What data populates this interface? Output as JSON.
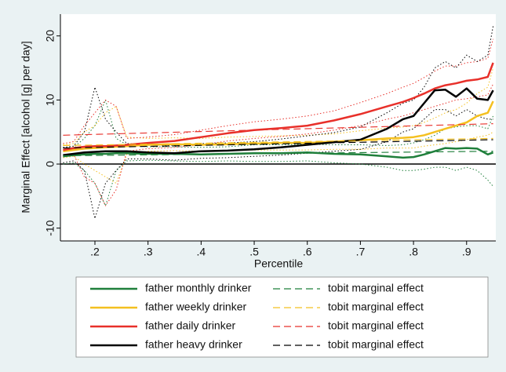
{
  "chart_data": {
    "type": "line",
    "x_label": "Percentile",
    "y_label": "Marginal Effect [alcohol [g] per day]",
    "x": [
      0.14,
      0.16,
      0.18,
      0.2,
      0.22,
      0.24,
      0.26,
      0.3,
      0.35,
      0.4,
      0.45,
      0.5,
      0.55,
      0.6,
      0.65,
      0.7,
      0.75,
      0.78,
      0.8,
      0.82,
      0.84,
      0.86,
      0.88,
      0.9,
      0.92,
      0.94,
      0.95
    ],
    "xlim": [
      0.135,
      0.955
    ],
    "ylim": [
      -12,
      23.4
    ],
    "xticks": [
      {
        "value": 0.2,
        "label": ".2"
      },
      {
        "value": 0.3,
        "label": ".3"
      },
      {
        "value": 0.4,
        "label": ".4"
      },
      {
        "value": 0.5,
        "label": ".5"
      },
      {
        "value": 0.6,
        "label": ".6"
      },
      {
        "value": 0.7,
        "label": ".7"
      },
      {
        "value": 0.8,
        "label": ".8"
      },
      {
        "value": 0.9,
        "label": ".9"
      }
    ],
    "yticks": [
      -10,
      0,
      10,
      20
    ],
    "zero_line": true,
    "series": [
      {
        "name": "father monthly drinker",
        "color": "#1f7f3b",
        "style": "solid",
        "values": [
          1.2,
          1.4,
          1.5,
          1.6,
          1.6,
          1.7,
          1.7,
          1.6,
          1.6,
          1.5,
          1.6,
          1.7,
          1.7,
          1.8,
          1.6,
          1.5,
          1.2,
          1.0,
          1.1,
          1.5,
          2.0,
          2.5,
          2.4,
          2.5,
          2.4,
          1.5,
          1.8
        ],
        "lower": [
          0.0,
          0.2,
          -1,
          -3,
          -6.5,
          -1,
          0.5,
          0.6,
          0.5,
          0.4,
          0.5,
          0.4,
          0.4,
          0.5,
          0.2,
          0,
          -0.5,
          -1,
          -1,
          -0.8,
          -0.5,
          -0.5,
          -1,
          -0.5,
          -1,
          -2.5,
          -3.5
        ],
        "upper": [
          2.5,
          2.6,
          4,
          6,
          10,
          4,
          3,
          2.7,
          2.7,
          2.6,
          2.7,
          3,
          3,
          3.1,
          3,
          3,
          2.9,
          3,
          3.3,
          3.8,
          4.5,
          5.5,
          5.8,
          6,
          6,
          5.5,
          7.5
        ]
      },
      {
        "name": "father weekly drinker",
        "color": "#f4c020",
        "style": "solid",
        "values": [
          2.0,
          2.2,
          2.4,
          2.5,
          2.6,
          2.7,
          2.8,
          3.0,
          3.1,
          3.0,
          3.1,
          3.2,
          3.3,
          3.3,
          3.5,
          3.7,
          4.0,
          4.1,
          4.2,
          4.5,
          5.0,
          5.5,
          6.0,
          6.5,
          7.5,
          8.0,
          9.8
        ],
        "lower": [
          1.0,
          1.2,
          0,
          -1,
          -2,
          -3,
          1.5,
          2,
          2.1,
          2,
          2.1,
          2.2,
          2.2,
          2.2,
          2.3,
          2.3,
          2.5,
          2.5,
          2.5,
          2.8,
          3,
          3.2,
          3.5,
          3.8,
          4.2,
          4.5,
          5
        ],
        "upper": [
          3,
          3.2,
          5,
          6,
          8,
          9,
          4.2,
          4,
          4.1,
          4,
          4.2,
          4.3,
          4.4,
          4.5,
          4.7,
          5.2,
          5.6,
          5.8,
          6,
          6.5,
          7.2,
          8,
          8.5,
          9.5,
          11,
          12,
          15
        ]
      },
      {
        "name": "father daily drinker",
        "color": "#e8302a",
        "style": "solid",
        "values": [
          2.2,
          2.5,
          2.7,
          2.8,
          2.8,
          2.9,
          3.0,
          3.3,
          3.6,
          4.2,
          4.8,
          5.3,
          5.6,
          6.0,
          6.8,
          7.8,
          9.0,
          9.7,
          10.3,
          11.0,
          11.8,
          12.3,
          12.6,
          13.0,
          13.2,
          13.6,
          15.8
        ],
        "lower": [
          1.2,
          1.5,
          -2,
          -3,
          -6.5,
          -4,
          2,
          2.4,
          2.6,
          3,
          3.6,
          4,
          4.3,
          4.7,
          5.3,
          6,
          7,
          7.5,
          8,
          8.5,
          9,
          9.5,
          10,
          10.2,
          10.5,
          10.8,
          12.5
        ],
        "upper": [
          3.2,
          3.5,
          6,
          8,
          10,
          9,
          4,
          4.2,
          4.6,
          5.3,
          6,
          6.6,
          7,
          7.5,
          8.3,
          9.6,
          11,
          12,
          12.6,
          13.5,
          14.5,
          15.3,
          15.3,
          15.8,
          16,
          16.5,
          19.5
        ]
      },
      {
        "name": "father heavy drinker",
        "color": "#000000",
        "style": "solid",
        "values": [
          1.4,
          1.6,
          1.8,
          1.9,
          2.0,
          2.0,
          2.0,
          1.8,
          1.7,
          2.0,
          2.1,
          2.3,
          2.6,
          3.0,
          3.4,
          3.8,
          5.5,
          7.0,
          7.5,
          9.5,
          11.5,
          11.6,
          10.5,
          11.8,
          10.2,
          10.0,
          11.5
        ],
        "lower": [
          0.2,
          0.5,
          -1,
          -8.5,
          -3,
          -1,
          0.8,
          0.8,
          0.6,
          0.9,
          1,
          1.2,
          1.4,
          1.7,
          2,
          2.3,
          3.5,
          5,
          5.5,
          7,
          8.5,
          8.5,
          7.5,
          8.5,
          7.5,
          7,
          7
        ],
        "upper": [
          2.6,
          2.8,
          5,
          12,
          7,
          5,
          3.2,
          3,
          2.9,
          3.2,
          3.3,
          3.5,
          3.9,
          4.4,
          4.9,
          5.8,
          8,
          9.5,
          10,
          12,
          15,
          16,
          15,
          17,
          16,
          17,
          21.5
        ]
      },
      {
        "name": "tobit marginal effect",
        "color": "#1f7f3b",
        "style": "dash",
        "x": [
          0.14,
          0.95
        ],
        "values": [
          1.3,
          2.0
        ]
      },
      {
        "name": "tobit marginal effect",
        "color": "#f4c020",
        "style": "dash",
        "x": [
          0.14,
          0.95
        ],
        "values": [
          2.9,
          4.0
        ]
      },
      {
        "name": "tobit marginal effect",
        "color": "#e8302a",
        "style": "dash",
        "x": [
          0.14,
          0.95
        ],
        "values": [
          4.5,
          6.3
        ]
      },
      {
        "name": "tobit marginal effect",
        "color": "#000000",
        "style": "dash",
        "x": [
          0.14,
          0.95
        ],
        "values": [
          2.5,
          3.8
        ]
      }
    ]
  }
}
